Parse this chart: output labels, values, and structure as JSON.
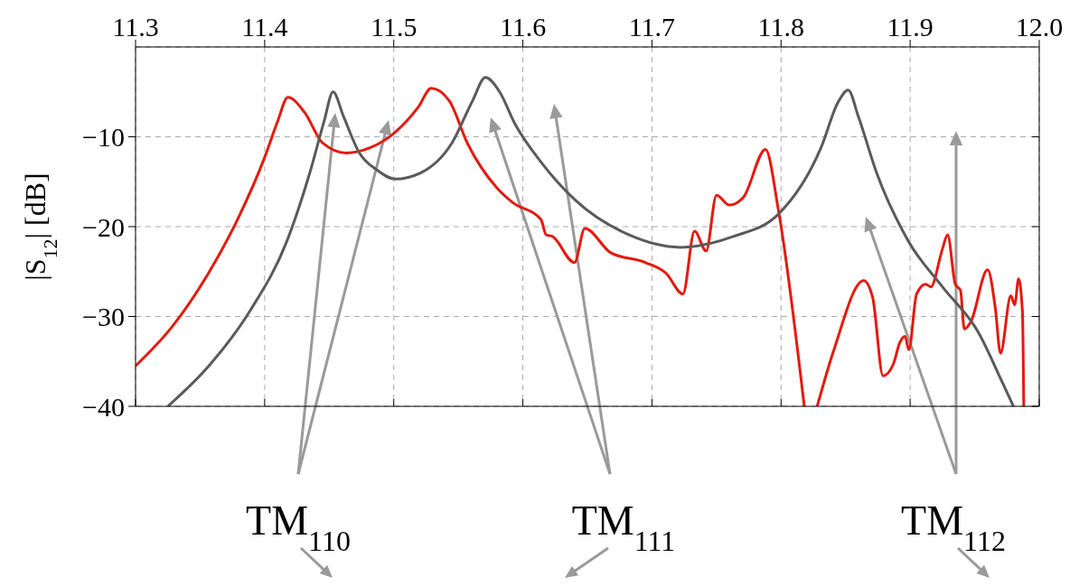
{
  "chart_data": {
    "type": "line",
    "ylabel": "|S$_{12}$| [dB]",
    "xlim": [
      11.3,
      12.0
    ],
    "xticks": [
      11.3,
      11.4,
      11.5,
      11.6,
      11.7,
      11.8,
      11.9,
      {
        "value": 12.0,
        "label": "12.0"
      }
    ],
    "ylim": [
      -40,
      0
    ],
    "yticks": [
      {
        "value": -40,
        "label": "−40"
      },
      {
        "value": -30,
        "label": "−30"
      },
      {
        "value": -20,
        "label": "−20"
      },
      {
        "value": -10,
        "label": "−10"
      }
    ],
    "grid": true,
    "line_style": "solid",
    "series": [
      {
        "color": "#e31a0e",
        "x": [
          11.3,
          11.328,
          11.356,
          11.379,
          11.4,
          11.41,
          11.418,
          11.431,
          11.445,
          11.463,
          11.482,
          11.501,
          11.519,
          11.529,
          11.543,
          11.557,
          11.58,
          11.592,
          11.614,
          11.618,
          11.623,
          11.64,
          11.648,
          11.668,
          11.695,
          11.711,
          11.724,
          11.733,
          11.742,
          11.75,
          11.76,
          11.771,
          11.788,
          11.798,
          11.818,
          11.823,
          11.828,
          11.841,
          11.864,
          11.871,
          11.879,
          11.887,
          11.892,
          11.896,
          11.899,
          11.905,
          11.912,
          11.916,
          11.925,
          11.929,
          11.935,
          11.939,
          11.942,
          11.947,
          11.96,
          11.966,
          11.97,
          11.978,
          11.981,
          11.984,
          11.987,
          11.988
        ],
        "values": [
          -35.5,
          -31.2,
          -25.3,
          -19.2,
          -12.3,
          -8.3,
          -5.6,
          -7.3,
          -10.7,
          -11.8,
          -11.2,
          -9.5,
          -6.7,
          -4.6,
          -6.0,
          -10.7,
          -15.7,
          -17.3,
          -19.2,
          -20.9,
          -21.1,
          -24.0,
          -20.2,
          -22.9,
          -24.0,
          -25.2,
          -27.5,
          -20.5,
          -22.7,
          -16.5,
          -17.6,
          -16.7,
          -11.4,
          -18.2,
          -40,
          null,
          -40,
          -33.7,
          -26.0,
          -27.9,
          -36.6,
          -35.3,
          -32.9,
          -32.2,
          -33.7,
          -27.5,
          -26.4,
          -26.7,
          -22.5,
          -20.9,
          -26.4,
          -27.1,
          -31.4,
          -30.6,
          -24.8,
          -29.1,
          -34.1,
          -27.7,
          -28.7,
          -25.8,
          -29.5,
          -40
        ]
      },
      {
        "color": "#5a5a5a",
        "x": [
          11.325,
          11.358,
          11.389,
          11.417,
          11.435,
          11.446,
          11.453,
          11.461,
          11.473,
          11.487,
          11.501,
          11.521,
          11.545,
          11.561,
          11.571,
          11.582,
          11.594,
          11.614,
          11.641,
          11.682,
          11.722,
          11.763,
          11.798,
          11.831,
          11.844,
          11.852,
          11.86,
          11.874,
          11.899,
          11.925,
          11.953,
          11.971,
          11.98
        ],
        "values": [
          -40,
          -35.3,
          -29.3,
          -21.7,
          -14.0,
          -8.3,
          -5.0,
          -7.7,
          -11.7,
          -13.7,
          -14.7,
          -14.0,
          -10.7,
          -6.0,
          -3.4,
          -5.0,
          -8.6,
          -12.8,
          -17.1,
          -20.9,
          -22.3,
          -21.1,
          -18.6,
          -11.2,
          -6.2,
          -4.8,
          -7.8,
          -14.0,
          -21.7,
          -26.7,
          -31.8,
          -37.2,
          -40
        ]
      }
    ],
    "annotations": [
      "TM$_{110}$",
      "TM$_{111}$",
      "TM$_{112}$"
    ]
  }
}
